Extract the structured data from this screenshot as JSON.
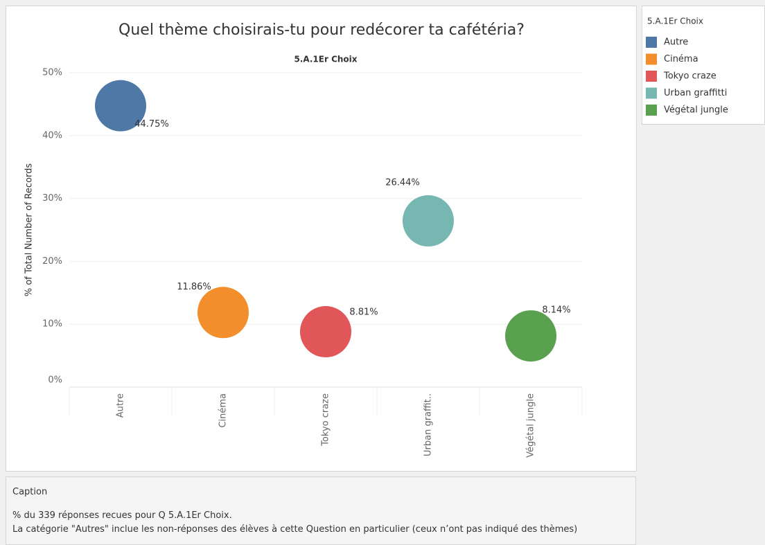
{
  "chart_data": {
    "type": "bubble",
    "title": "Quel thème choisirais-tu pour redécorer ta cafétéria?",
    "subtitle": "5.A.1Er Choix",
    "y_label": "% of Total Number of Records",
    "categories": [
      "Autre",
      "Cinéma",
      "Tokyo craze",
      "Urban graffit..",
      "Végétal jungle"
    ],
    "values": [
      44.75,
      11.86,
      8.81,
      26.44,
      8.14
    ],
    "value_labels": [
      "44.75%",
      "11.86%",
      "8.81%",
      "26.44%",
      "8.14%"
    ],
    "colors": [
      "#4e79a7",
      "#f28e2b",
      "#e15759",
      "#76b7b2",
      "#59a14f"
    ],
    "ylim": [
      0,
      50
    ],
    "yticks": [
      {
        "value": 0,
        "label": "0%"
      },
      {
        "value": 10,
        "label": "10%"
      },
      {
        "value": 20,
        "label": "20%"
      },
      {
        "value": 30,
        "label": "30%"
      },
      {
        "value": 40,
        "label": "40%"
      },
      {
        "value": 50,
        "label": "50%"
      }
    ],
    "grid": true,
    "legend": {
      "title": "5.A.1Er Choix",
      "items": [
        "Autre",
        "Cinéma",
        "Tokyo craze",
        "Urban graffitti",
        "Végétal jungle"
      ]
    }
  },
  "caption": {
    "title": "Caption",
    "lines": [
      "% du 339 réponses recues pour Q 5.A.1Er Choix.",
      "La catégorie \"Autres\" inclue les non-réponses des élèves à cette Question en particulier (ceux n’ont pas indiqué des thèmes)"
    ]
  }
}
